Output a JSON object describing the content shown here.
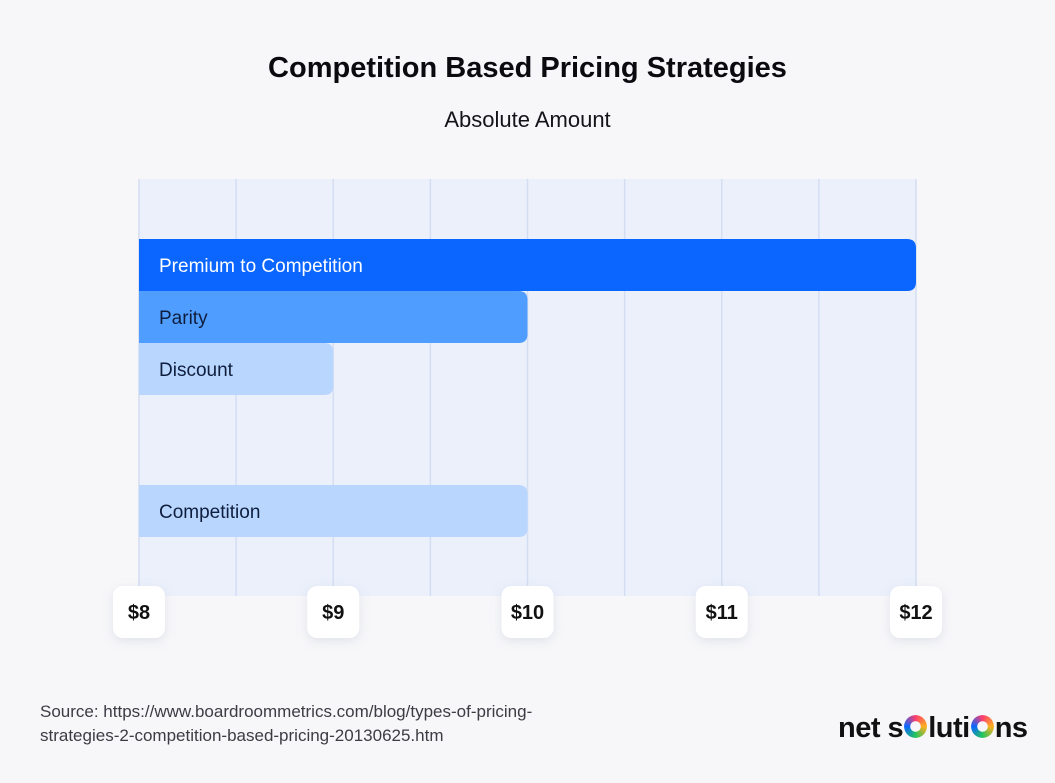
{
  "title": "Competition Based Pricing Strategies",
  "subtitle": "Absolute Amount",
  "source": "Source: https://www.boardroommetrics.com/blog/types-of-pricing-strategies-2-competition-based-pricing-20130625.htm",
  "brand": {
    "prefix": "net s",
    "suffix": "luti",
    "end": "ns"
  },
  "chart_data": {
    "type": "bar",
    "orientation": "horizontal",
    "title": "Competition Based Pricing Strategies",
    "subtitle": "Absolute Amount",
    "xlim": [
      8,
      12
    ],
    "ticks": [
      "$8",
      "$9",
      "$10",
      "$11",
      "$12"
    ],
    "grid": true,
    "groups": [
      {
        "bars": [
          {
            "label": "Premium to Competition",
            "value": 12,
            "color": "#0a66ff",
            "text_color": "#ffffff"
          },
          {
            "label": "Parity",
            "value": 10,
            "color": "#4f9dff",
            "text_color": "#0f1e3d"
          },
          {
            "label": "Discount",
            "value": 9,
            "color": "#b9d6ff",
            "text_color": "#0f1e3d"
          }
        ]
      },
      {
        "bars": [
          {
            "label": "Competition",
            "value": 10,
            "color": "#b9d6ff",
            "text_color": "#0f1e3d"
          }
        ]
      }
    ]
  }
}
